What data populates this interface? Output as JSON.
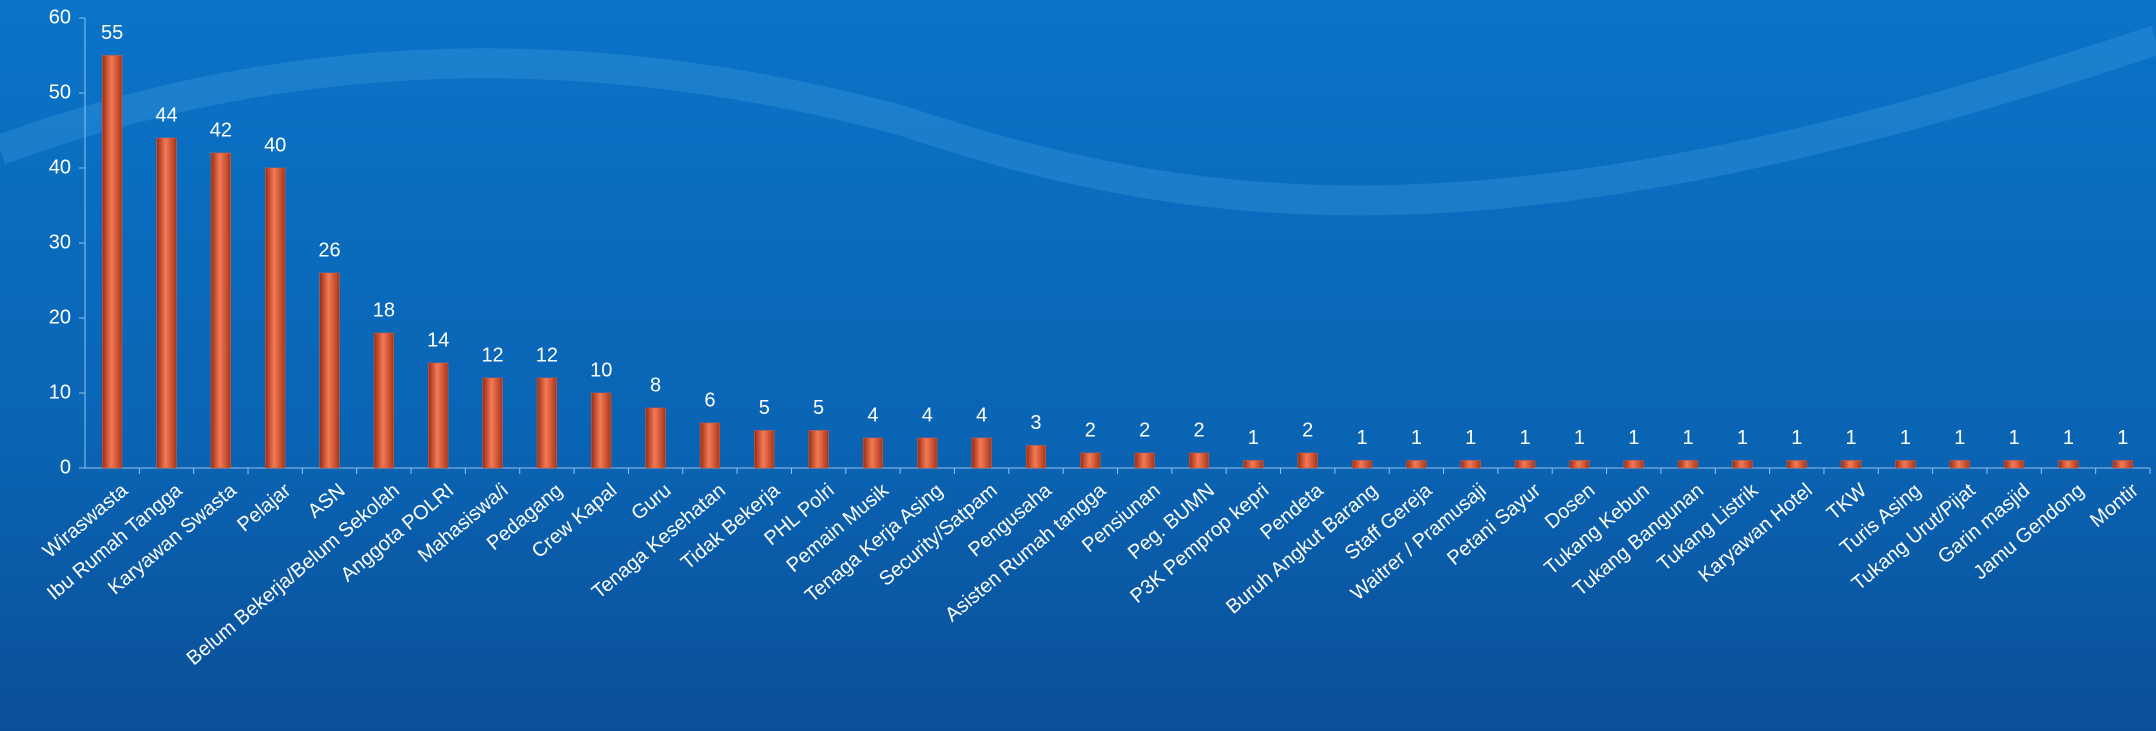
{
  "chart_data": {
    "type": "bar",
    "categories": [
      "Wiraswasta",
      "Ibu Rumah Tangga",
      "Karyawan Swasta",
      "Pelajar",
      "ASN",
      "Belum Bekerja/Belum Sekolah",
      "Anggota POLRI",
      "Mahasiswa/i",
      "Pedagang",
      "Crew Kapal",
      "Guru",
      "Tenaga Kesehatan",
      "Tidak  Bekerja",
      "PHL Polri",
      "Pemain Musik",
      "Tenaga Kerja Asing",
      "Security/Satpam",
      "Pengusaha",
      "Asisten Rumah tangga",
      "Pensiunan",
      "Peg. BUMN",
      "P3K Pemprop kepri",
      "Pendeta",
      "Buruh Angkut Barang",
      "Staff Gereja",
      "Waitrer  / Pramusaji",
      "Petani Sayur",
      "Dosen",
      "Tukang Kebun",
      "Tukang Bangunan",
      "Tukang Listrik",
      "Karyawan Hotel",
      "TKW",
      "Turis Asing",
      "Tukang Urut/Pijat",
      "Garin masjid",
      "Jamu Gendong",
      "Montir"
    ],
    "values": [
      55,
      44,
      42,
      40,
      26,
      18,
      14,
      12,
      12,
      10,
      8,
      6,
      5,
      5,
      4,
      4,
      4,
      3,
      2,
      2,
      2,
      1,
      2,
      1,
      1,
      1,
      1,
      1,
      1,
      1,
      1,
      1,
      1,
      1,
      1,
      1,
      1,
      1
    ],
    "color": "#e8603c",
    "ylim": [
      0,
      60
    ],
    "yticks": [
      0,
      10,
      20,
      30,
      40,
      50,
      60
    ]
  }
}
